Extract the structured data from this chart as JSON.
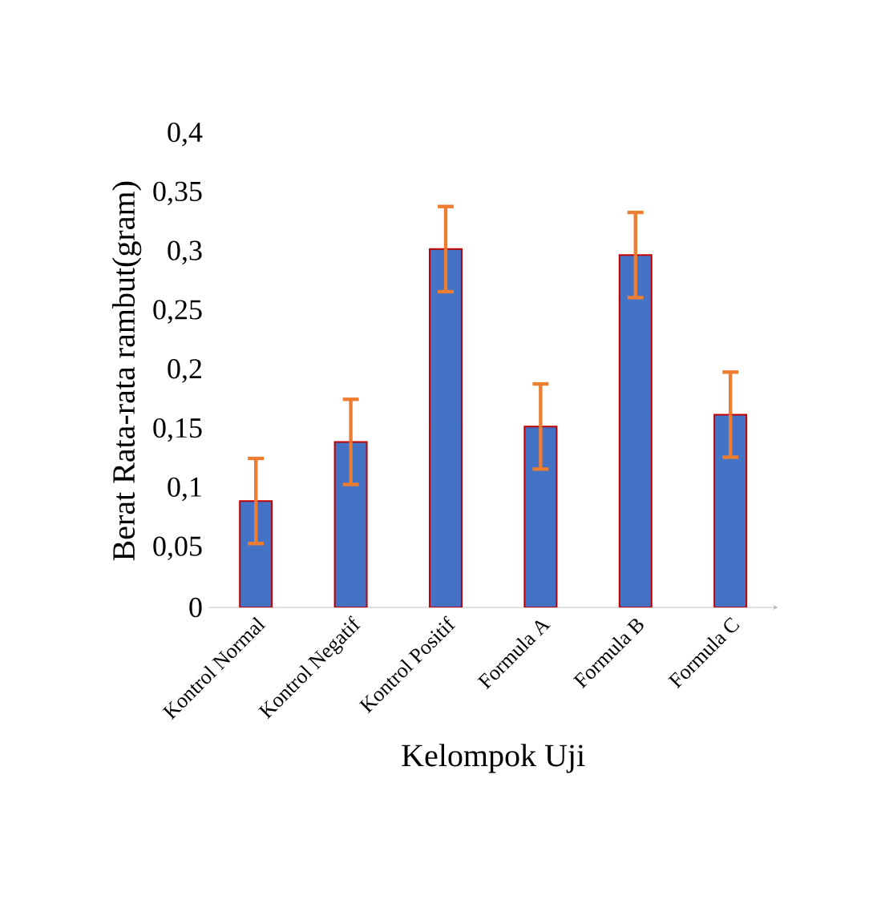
{
  "chart_data": {
    "type": "bar",
    "xlabel": "Kelompok Uji",
    "ylabel": "Berat Rata-rata rambut(gram)",
    "categories": [
      "Kontrol Normal",
      "Kontrol Negatif",
      "Kontrol Positif",
      "Formula A",
      "Formula B",
      "Formula C"
    ],
    "values": [
      0.09,
      0.14,
      0.303,
      0.153,
      0.298,
      0.163
    ],
    "errors": [
      0.036,
      0.036,
      0.036,
      0.036,
      0.036,
      0.036
    ],
    "color": "#4472c4",
    "ylim": [
      0,
      0.4
    ],
    "yticks": [
      0,
      {
        "value": 0.05,
        "label": "0,05"
      },
      {
        "value": 0.1,
        "label": "0,1"
      },
      {
        "value": 0.15,
        "label": "0,15"
      },
      {
        "value": 0.2,
        "label": "0,2"
      },
      {
        "value": 0.25,
        "label": "0,25"
      },
      {
        "value": 0.3,
        "label": "0,3"
      },
      {
        "value": 0.35,
        "label": "0,35"
      },
      {
        "value": 0.4,
        "label": "0,4"
      }
    ],
    "grid": false
  }
}
